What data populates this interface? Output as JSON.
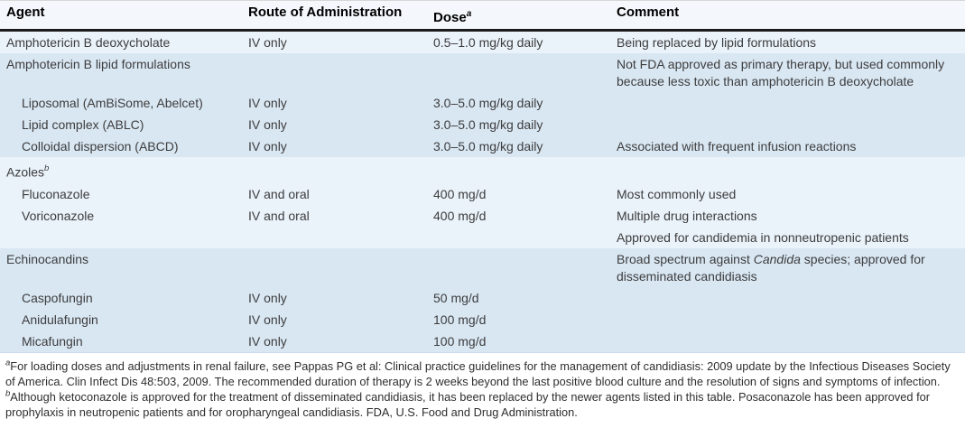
{
  "colors": {
    "band_light": "#eaf2fa",
    "band_dark": "#d9e7f3",
    "header_bg": "#f4f8fc",
    "header_rule": "#1b1b1b",
    "body_text": "#3d3d3d"
  },
  "table": {
    "header": {
      "columns": [
        {
          "label": "Agent",
          "sup": ""
        },
        {
          "label": "Route of Administration",
          "sup": ""
        },
        {
          "label": "Dose",
          "sup": "a"
        },
        {
          "label": "Comment",
          "sup": ""
        }
      ]
    },
    "rows": [
      {
        "band": "light",
        "agent": {
          "label": "Amphotericin B deoxycholate",
          "sup": "",
          "indent": false
        },
        "route": "IV only",
        "dose": "0.5–1.0 mg/kg daily",
        "comment": [
          {
            "text": "Being replaced by lipid formulations",
            "italic": false
          }
        ]
      },
      {
        "band": "dark",
        "agent": {
          "label": "Amphotericin B lipid formulations",
          "sup": "",
          "indent": false
        },
        "route": "",
        "dose": "",
        "comment": [
          {
            "text": "Not FDA approved as primary therapy, but used commonly because less toxic than amphotericin B deoxycholate",
            "italic": false
          }
        ]
      },
      {
        "band": "dark",
        "agent": {
          "label": "Liposomal (AmBiSome, Abelcet)",
          "sup": "",
          "indent": true
        },
        "route": "IV only",
        "dose": "3.0–5.0 mg/kg daily",
        "comment": []
      },
      {
        "band": "dark",
        "agent": {
          "label": "Lipid complex (ABLC)",
          "sup": "",
          "indent": true
        },
        "route": "IV only",
        "dose": "3.0–5.0 mg/kg daily",
        "comment": []
      },
      {
        "band": "dark",
        "agent": {
          "label": "Colloidal dispersion (ABCD)",
          "sup": "",
          "indent": true
        },
        "route": "IV only",
        "dose": "3.0–5.0 mg/kg daily",
        "comment": [
          {
            "text": "Associated with frequent infusion reactions",
            "italic": false
          }
        ]
      },
      {
        "band": "light",
        "agent": {
          "label": "Azoles",
          "sup": "b",
          "indent": false
        },
        "route": "",
        "dose": "",
        "comment": []
      },
      {
        "band": "light",
        "agent": {
          "label": "Fluconazole",
          "sup": "",
          "indent": true
        },
        "route": "IV and oral",
        "dose": "400 mg/d",
        "comment": [
          {
            "text": "Most commonly used",
            "italic": false
          }
        ]
      },
      {
        "band": "light",
        "agent": {
          "label": "Voriconazole",
          "sup": "",
          "indent": true
        },
        "route": "IV and oral",
        "dose": "400 mg/d",
        "comment": [
          {
            "text": "Multiple drug interactions",
            "italic": false
          }
        ]
      },
      {
        "band": "light",
        "agent": {
          "label": "",
          "sup": "",
          "indent": false
        },
        "route": "",
        "dose": "",
        "comment": [
          {
            "text": "Approved for candidemia in nonneutropenic patients",
            "italic": false
          }
        ]
      },
      {
        "band": "dark",
        "agent": {
          "label": "Echinocandins",
          "sup": "",
          "indent": false
        },
        "route": "",
        "dose": "",
        "comment": [
          {
            "text": "Broad spectrum against ",
            "italic": false
          },
          {
            "text": "Candida",
            "italic": true
          },
          {
            "text": " species; approved for disseminated candidiasis",
            "italic": false
          }
        ]
      },
      {
        "band": "dark",
        "agent": {
          "label": "Caspofungin",
          "sup": "",
          "indent": true
        },
        "route": "IV only",
        "dose": "50 mg/d",
        "comment": []
      },
      {
        "band": "dark",
        "agent": {
          "label": "Anidulafungin",
          "sup": "",
          "indent": true
        },
        "route": "IV only",
        "dose": "100 mg/d",
        "comment": []
      },
      {
        "band": "dark",
        "agent": {
          "label": "Micafungin",
          "sup": "",
          "indent": true
        },
        "route": "IV only",
        "dose": "100 mg/d",
        "comment": []
      }
    ]
  },
  "footnote": {
    "segments": [
      {
        "text": "a",
        "style": "sup"
      },
      {
        "text": "For loading doses and adjustments in renal failure, see Pappas PG et al: Clinical practice guidelines for the management of candidiasis: 2009 update by the Infectious Diseases Society of America. Clin Infect Dis 48:503, 2009. The recommended duration of therapy is 2 weeks beyond the last positive blood culture and the resolution of signs and symptoms of infection. ",
        "style": "normal"
      },
      {
        "text": "b",
        "style": "sup"
      },
      {
        "text": "Although ketoconazole is approved for the treatment of disseminated candidiasis, it has been replaced by the newer agents listed in this table. Posaconazole has been approved for prophylaxis in neutropenic patients and for oropharyngeal candidiasis. FDA, U.S. Food and Drug Administration.",
        "style": "normal"
      }
    ]
  }
}
